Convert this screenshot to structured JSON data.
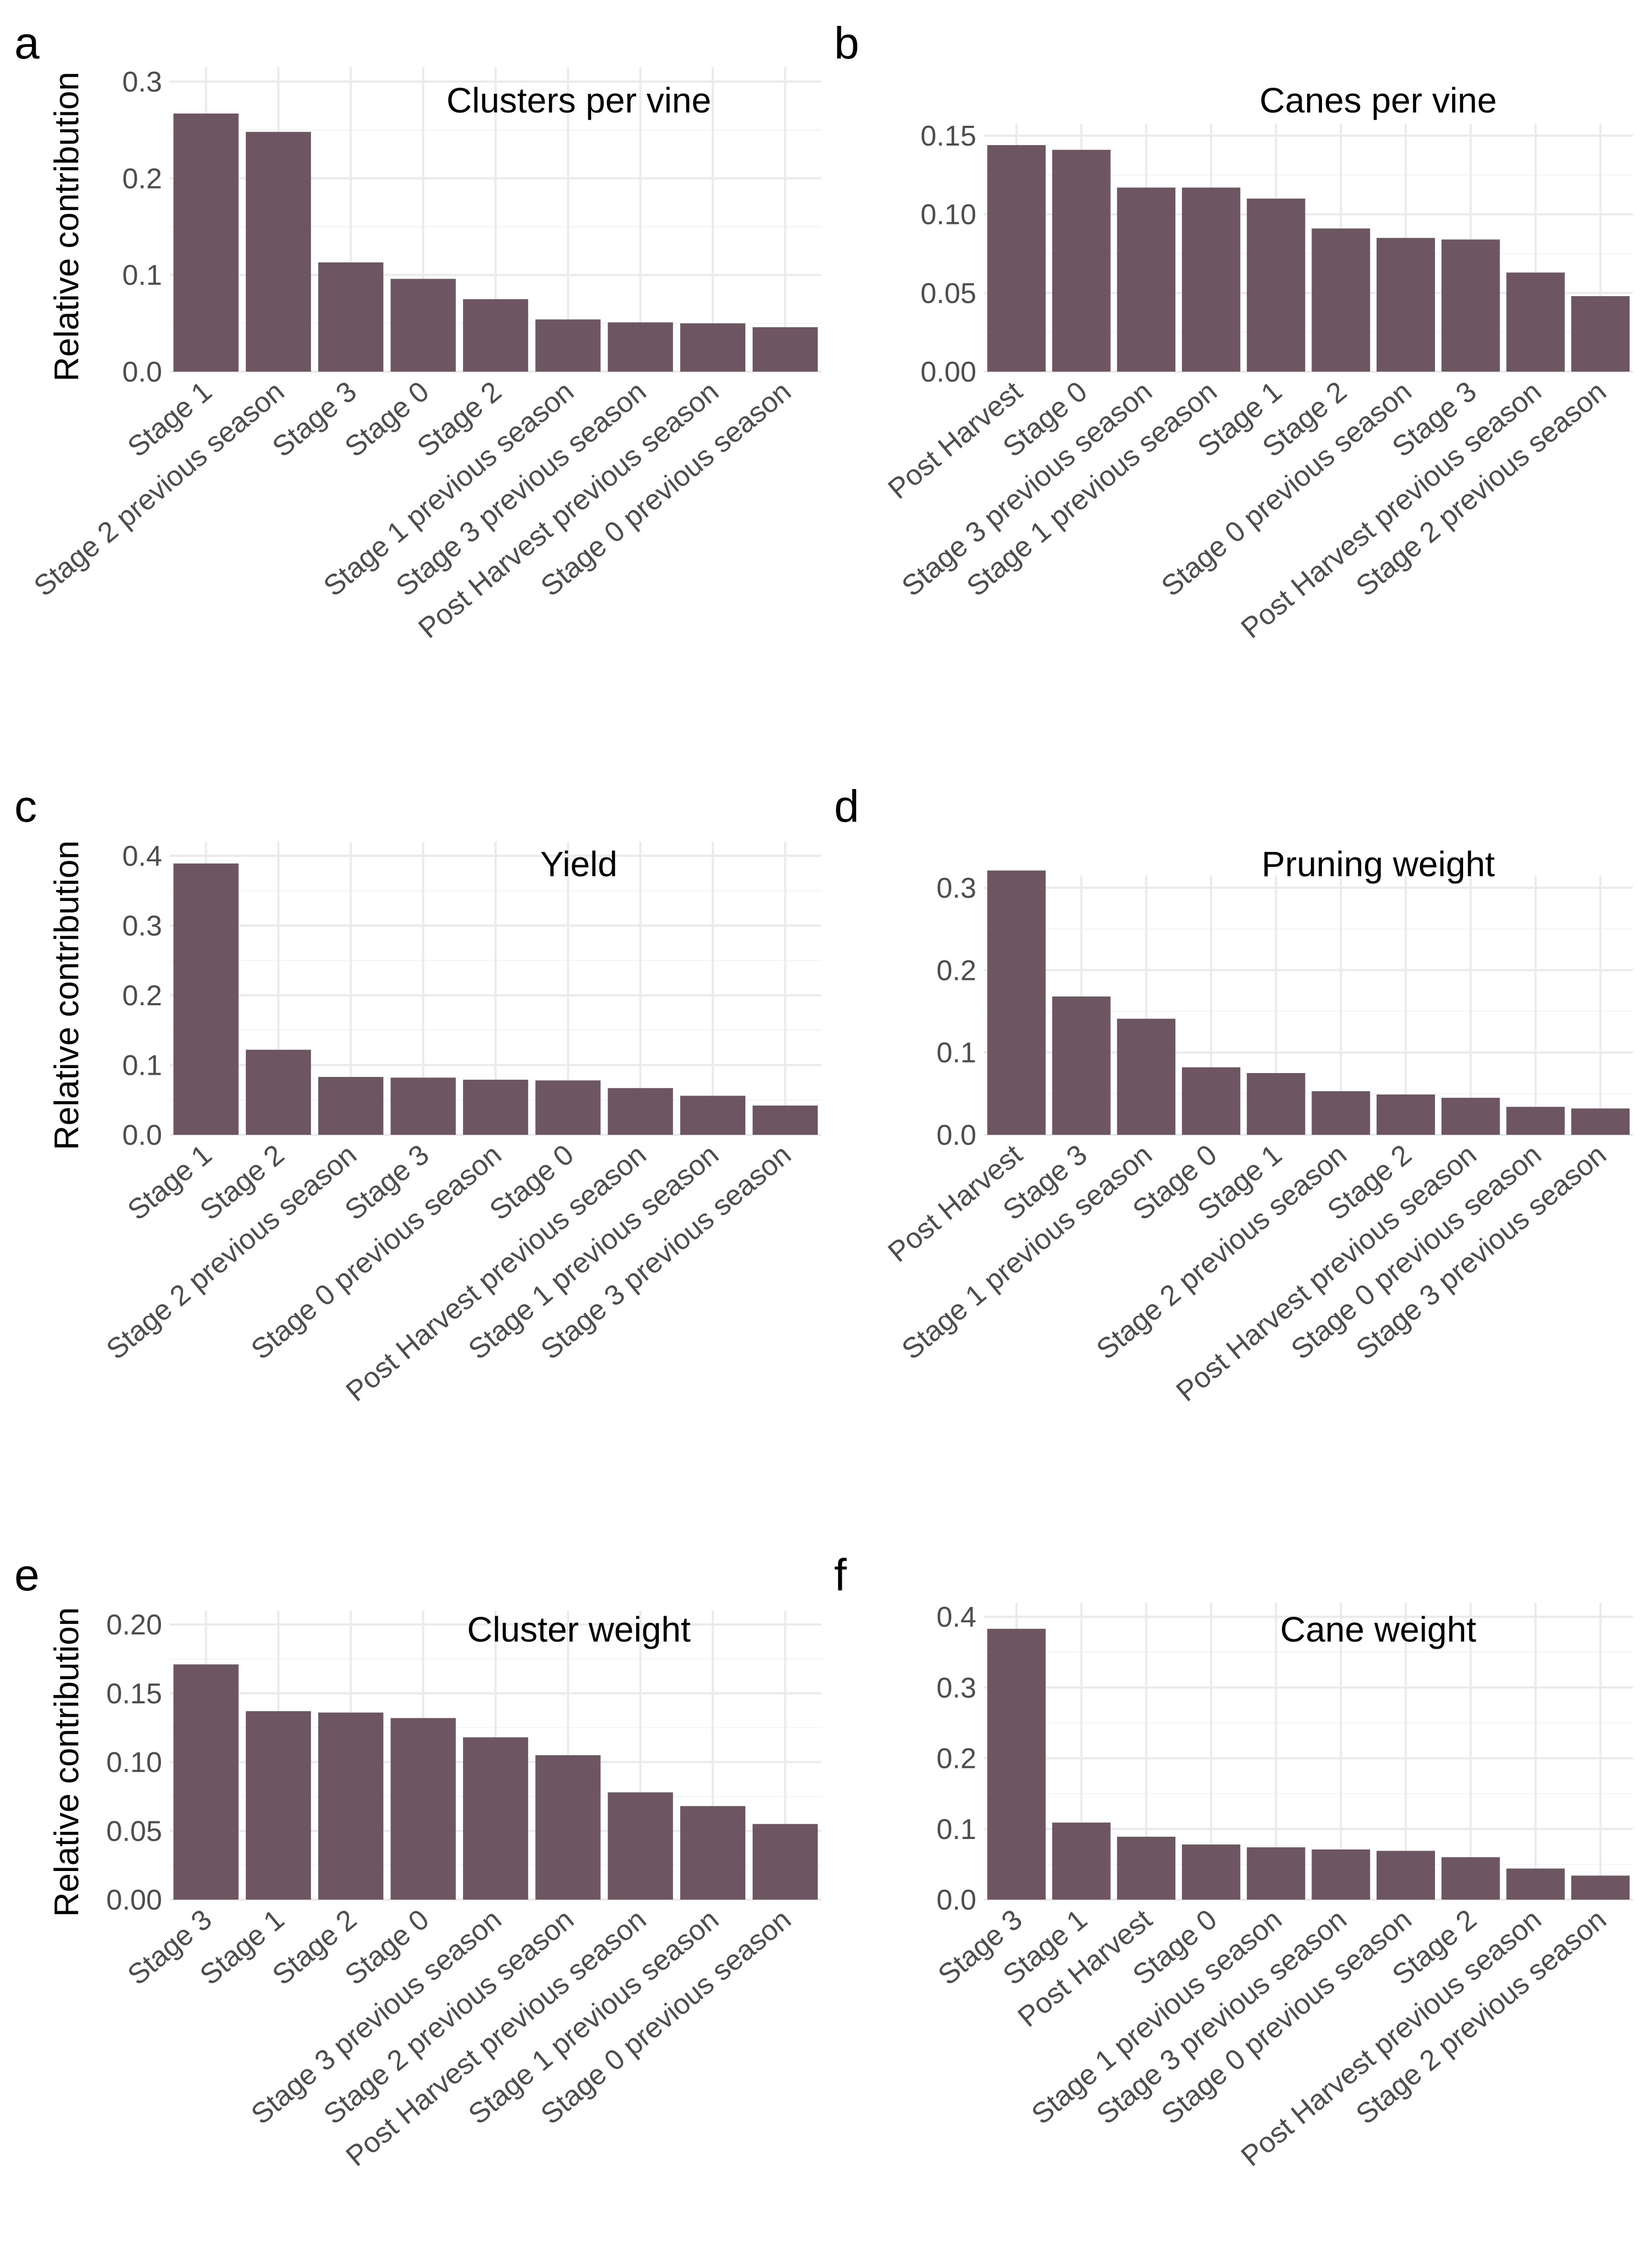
{
  "colors": {
    "bar": "#6d5562",
    "grid": "#ebebeb",
    "tick_text": "#4d4d4d"
  },
  "chart_data": [
    {
      "panel": "a",
      "type": "bar",
      "title": "Clusters per vine",
      "ylabel": "Relative contribution",
      "xlabel": "",
      "ylim": [
        0,
        0.3
      ],
      "yticks": [
        "0.0",
        "0.1",
        "0.2",
        "0.3"
      ],
      "categories": [
        "Stage 1",
        "Stage 2 previous season",
        "Stage 3",
        "Stage 0",
        "Stage 2",
        "Stage 1 previous season",
        "Stage 3 previous season",
        "Post Harvest previous season",
        "Stage 0 previous season"
      ],
      "values": [
        0.267,
        0.248,
        0.113,
        0.096,
        0.075,
        0.054,
        0.051,
        0.05,
        0.046
      ]
    },
    {
      "panel": "b",
      "type": "bar",
      "title": "Canes per vine",
      "ylabel": "",
      "xlabel": "",
      "ylim": [
        0,
        0.15
      ],
      "yticks": [
        "0.00",
        "0.05",
        "0.10",
        "0.15"
      ],
      "categories": [
        "Post Harvest",
        "Stage 0",
        "Stage 3 previous season",
        "Stage 1 previous season",
        "Stage 1",
        "Stage 2",
        "Stage 0 previous season",
        "Stage 3",
        "Post Harvest previous season",
        "Stage 2 previous season"
      ],
      "values": [
        0.144,
        0.141,
        0.117,
        0.117,
        0.11,
        0.091,
        0.085,
        0.084,
        0.063,
        0.048
      ]
    },
    {
      "panel": "c",
      "type": "bar",
      "title": "Yield",
      "ylabel": "Relative contribution",
      "xlabel": "",
      "ylim": [
        0,
        0.4
      ],
      "yticks": [
        "0.0",
        "0.1",
        "0.2",
        "0.3",
        "0.4"
      ],
      "categories": [
        "Stage 1",
        "Stage 2",
        "Stage 2 previous season",
        "Stage 3",
        "Stage 0 previous season",
        "Stage 0",
        "Post Harvest previous season",
        "Stage 1 previous season",
        "Stage 3 previous season"
      ],
      "values": [
        0.389,
        0.122,
        0.083,
        0.082,
        0.079,
        0.078,
        0.067,
        0.056,
        0.042
      ]
    },
    {
      "panel": "d",
      "type": "bar",
      "title": "Pruning weight",
      "ylabel": "",
      "xlabel": "",
      "ylim": [
        0,
        0.3
      ],
      "yticks": [
        "0.0",
        "0.1",
        "0.2",
        "0.3"
      ],
      "categories": [
        "Post Harvest",
        "Stage 3",
        "Stage 1 previous season",
        "Stage 0",
        "Stage 1",
        "Stage 2 previous season",
        "Stage 2",
        "Post Harvest previous season",
        "Stage 0 previous season",
        "Stage 3 previous season"
      ],
      "values": [
        0.321,
        0.168,
        0.141,
        0.082,
        0.075,
        0.053,
        0.049,
        0.045,
        0.034,
        0.032
      ]
    },
    {
      "panel": "e",
      "type": "bar",
      "title": "Cluster weight",
      "ylabel": "Relative contribution",
      "xlabel": "",
      "ylim": [
        0,
        0.2
      ],
      "yticks": [
        "0.00",
        "0.05",
        "0.10",
        "0.15",
        "0.20"
      ],
      "categories": [
        "Stage 3",
        "Stage 1",
        "Stage 2",
        "Stage 0",
        "Stage 3 previous season",
        "Stage 2 previous season",
        "Post Harvest previous season",
        "Stage 1 previous season",
        "Stage 0 previous season"
      ],
      "values": [
        0.171,
        0.137,
        0.136,
        0.132,
        0.118,
        0.105,
        0.078,
        0.068,
        0.055
      ]
    },
    {
      "panel": "f",
      "type": "bar",
      "title": "Cane weight",
      "ylabel": "",
      "xlabel": "",
      "ylim": [
        0,
        0.4
      ],
      "yticks": [
        "0.0",
        "0.1",
        "0.2",
        "0.3",
        "0.4"
      ],
      "categories": [
        "Stage 3",
        "Stage 1",
        "Post Harvest",
        "Stage 0",
        "Stage 1 previous season",
        "Stage 3 previous season",
        "Stage 0 previous season",
        "Stage 2",
        "Post Harvest previous season",
        "Stage 2 previous season"
      ],
      "values": [
        0.383,
        0.109,
        0.089,
        0.078,
        0.074,
        0.071,
        0.069,
        0.06,
        0.044,
        0.034
      ]
    }
  ]
}
